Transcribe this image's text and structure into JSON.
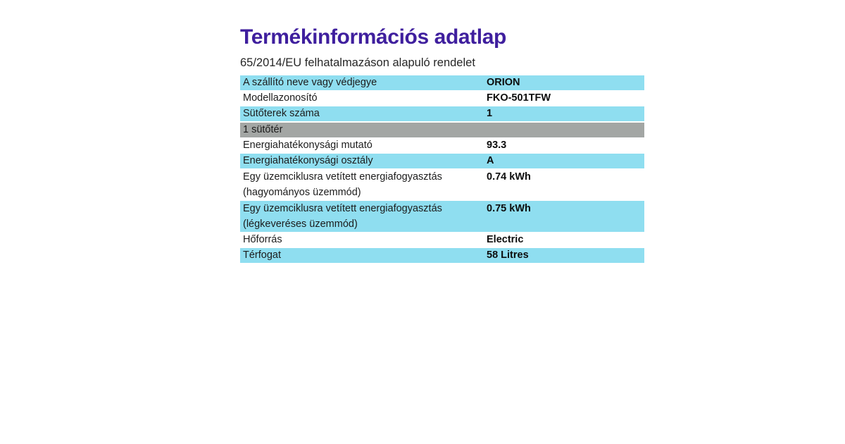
{
  "title": "Termékinformációs adatlap",
  "subtitle": "65/2014/EU felhatalmazáson alapuló rendelet",
  "colors": {
    "title_purple": "#3f1f9e",
    "row_blue": "#8fdef0",
    "row_gray": "#a3a6a4",
    "text_dark": "#1c1c1c"
  },
  "table": {
    "rows": [
      {
        "label": "A szállító neve vagy védjegye",
        "value": "ORION",
        "bg": "blue"
      },
      {
        "label": "Modellazonosító",
        "value": "FKO-501TFW",
        "bg": "white"
      },
      {
        "label": "Sütőterek száma",
        "value": "1",
        "bg": "blue"
      },
      {
        "label": "1 sütőtér",
        "value": "",
        "bg": "gray",
        "section": true
      },
      {
        "label": "Energiahatékonysági mutató",
        "value": "93.3",
        "bg": "white"
      },
      {
        "label": "Energiahatékonysági osztály",
        "value": "A",
        "bg": "blue"
      },
      {
        "label": "Egy üzemciklusra vetített energiafogyasztás",
        "label2": "(hagyományos üzemmód)",
        "value": "0.74 kWh",
        "bg": "white"
      },
      {
        "label": "Egy üzemciklusra vetített energiafogyasztás",
        "label2": "(légkeveréses üzemmód)",
        "value": "0.75 kWh",
        "bg": "blue"
      },
      {
        "label": "Hőforrás",
        "value": "Electric",
        "bg": "white"
      },
      {
        "label": "Térfogat",
        "value": "58 Litres",
        "bg": "blue"
      }
    ]
  }
}
